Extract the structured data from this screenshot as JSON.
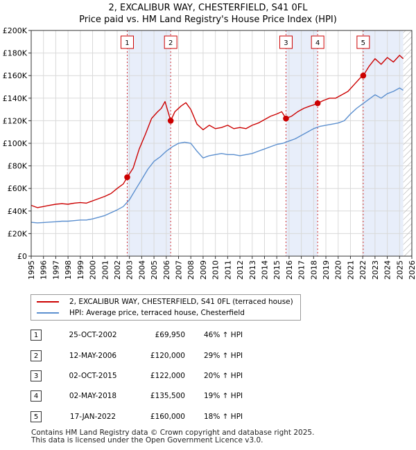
{
  "title_line1": "2, EXCALIBUR WAY, CHESTERFIELD, S41 0FL",
  "title_line2": "Price paid vs. HM Land Registry's House Price Index (HPI)",
  "chart_data": {
    "type": "line",
    "title": "2, EXCALIBUR WAY, CHESTERFIELD, S41 0FL — Price paid vs. HM Land Registry's House Price Index (HPI)",
    "xlabel": "",
    "ylabel": "",
    "xlim": [
      1995,
      2026
    ],
    "ylim": [
      0,
      200000
    ],
    "x_ticks": [
      "1995",
      "1996",
      "1997",
      "1998",
      "1999",
      "2000",
      "2001",
      "2002",
      "2003",
      "2004",
      "2005",
      "2006",
      "2007",
      "2008",
      "2009",
      "2010",
      "2011",
      "2012",
      "2013",
      "2014",
      "2015",
      "2016",
      "2017",
      "2018",
      "2019",
      "2020",
      "2021",
      "2022",
      "2023",
      "2024",
      "2025",
      "2026"
    ],
    "y_ticks": [
      "£0",
      "£20K",
      "£40K",
      "£60K",
      "£80K",
      "£100K",
      "£120K",
      "£140K",
      "£160K",
      "£180K",
      "£200K"
    ],
    "grid": true,
    "shaded_ranges": [
      [
        2002.82,
        2006.36
      ],
      [
        2015.75,
        2018.33
      ],
      [
        2022.04,
        2025.3
      ]
    ],
    "series": [
      {
        "name": "2, EXCALIBUR WAY, CHESTERFIELD, S41 0FL (terraced house)",
        "color": "#cc0000",
        "x": [
          1995,
          1995.5,
          1996,
          1996.5,
          1997,
          1997.5,
          1998,
          1998.5,
          1999,
          1999.5,
          2000,
          2000.5,
          2001,
          2001.5,
          2002,
          2002.5,
          2002.82,
          2003.3,
          2003.8,
          2004.3,
          2004.8,
          2005.3,
          2005.6,
          2005.9,
          2006.2,
          2006.36,
          2006.7,
          2007.2,
          2007.6,
          2008,
          2008.5,
          2009,
          2009.5,
          2010,
          2010.5,
          2011,
          2011.5,
          2012,
          2012.5,
          2013,
          2013.5,
          2014,
          2014.5,
          2015,
          2015.4,
          2015.75,
          2016.2,
          2016.7,
          2017.2,
          2017.7,
          2018,
          2018.33,
          2018.8,
          2019.3,
          2019.8,
          2020.3,
          2020.8,
          2021.3,
          2021.8,
          2022.04,
          2022.5,
          2023,
          2023.5,
          2024,
          2024.5,
          2025,
          2025.3
        ],
        "values": [
          45000,
          43000,
          44000,
          45000,
          46000,
          46500,
          46000,
          47000,
          47500,
          47000,
          49000,
          51000,
          53000,
          55500,
          60000,
          64000,
          69950,
          78000,
          95000,
          108000,
          122000,
          128000,
          131000,
          137000,
          126000,
          120000,
          128000,
          133000,
          136000,
          130000,
          117000,
          112000,
          116000,
          113000,
          114000,
          116000,
          113000,
          114000,
          113000,
          116000,
          118000,
          121000,
          124000,
          126000,
          128000,
          122000,
          124000,
          128000,
          131000,
          133000,
          134000,
          135500,
          138000,
          140000,
          140000,
          143000,
          146000,
          152000,
          158000,
          160000,
          168000,
          175000,
          170000,
          176000,
          172000,
          178000,
          175000
        ]
      },
      {
        "name": "HPI: Average price, terraced house, Chesterfield",
        "color": "#5b8fcf",
        "x": [
          1995,
          1995.5,
          1996,
          1996.5,
          1997,
          1997.5,
          1998,
          1998.5,
          1999,
          1999.5,
          2000,
          2000.5,
          2001,
          2001.5,
          2002,
          2002.5,
          2003,
          2003.5,
          2004,
          2004.5,
          2005,
          2005.5,
          2006,
          2006.5,
          2007,
          2007.5,
          2008,
          2008.5,
          2009,
          2009.5,
          2010,
          2010.5,
          2011,
          2011.5,
          2012,
          2012.5,
          2013,
          2013.5,
          2014,
          2014.5,
          2015,
          2015.5,
          2016,
          2016.5,
          2017,
          2017.5,
          2018,
          2018.5,
          2019,
          2019.5,
          2020,
          2020.5,
          2021,
          2021.5,
          2022,
          2022.5,
          2023,
          2023.5,
          2024,
          2024.5,
          2025,
          2025.3
        ],
        "values": [
          30000,
          29500,
          29800,
          30200,
          30500,
          31000,
          31000,
          31500,
          32000,
          32000,
          33000,
          34500,
          36000,
          38500,
          41000,
          44000,
          50000,
          59000,
          68000,
          77000,
          84000,
          88000,
          93000,
          97000,
          100000,
          101000,
          100000,
          93000,
          87000,
          89000,
          90000,
          91000,
          90000,
          90000,
          89000,
          90000,
          91000,
          93000,
          95000,
          97000,
          99000,
          100000,
          102000,
          104000,
          107000,
          110000,
          113000,
          115000,
          116000,
          117000,
          118000,
          120000,
          126000,
          131000,
          135000,
          139000,
          143000,
          140000,
          144000,
          146000,
          149000,
          147000
        ]
      }
    ],
    "sales": [
      {
        "label": "1",
        "x": 2002.82,
        "value": 69950
      },
      {
        "label": "2",
        "x": 2006.36,
        "value": 120000
      },
      {
        "label": "3",
        "x": 2015.75,
        "value": 122000
      },
      {
        "label": "4",
        "x": 2018.33,
        "value": 135500
      },
      {
        "label": "5",
        "x": 2022.04,
        "value": 160000
      }
    ]
  },
  "legend": {
    "property": "2, EXCALIBUR WAY, CHESTERFIELD, S41 0FL (terraced house)",
    "hpi": "HPI: Average price, terraced house, Chesterfield"
  },
  "colors": {
    "property": "#cc0000",
    "hpi": "#5b8fcf",
    "shade": "#e8eefa",
    "sale_line": "#cc0000"
  },
  "sales_table": [
    {
      "num": "1",
      "date": "25-OCT-2002",
      "price": "£69,950",
      "hpi": "46% ↑ HPI"
    },
    {
      "num": "2",
      "date": "12-MAY-2006",
      "price": "£120,000",
      "hpi": "29% ↑ HPI"
    },
    {
      "num": "3",
      "date": "02-OCT-2015",
      "price": "£122,000",
      "hpi": "20% ↑ HPI"
    },
    {
      "num": "4",
      "date": "02-MAY-2018",
      "price": "£135,500",
      "hpi": "19% ↑ HPI"
    },
    {
      "num": "5",
      "date": "17-JAN-2022",
      "price": "£160,000",
      "hpi": "18% ↑ HPI"
    }
  ],
  "footer_line1": "Contains HM Land Registry data © Crown copyright and database right 2025.",
  "footer_line2": "This data is licensed under the Open Government Licence v3.0."
}
